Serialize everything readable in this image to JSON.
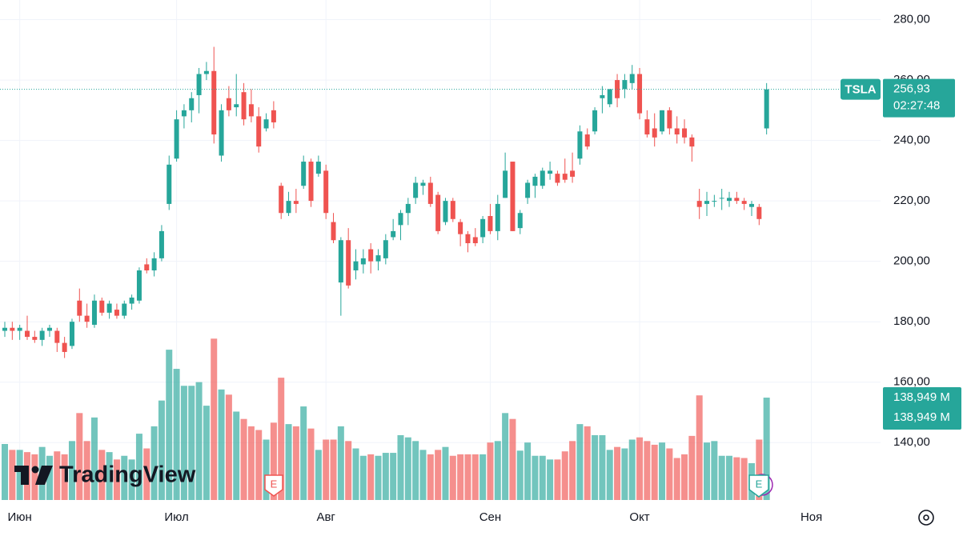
{
  "chart_data": {
    "type": "candlestick",
    "symbol": "TSLA",
    "categories": [
      null,
      null,
      "Июн",
      null,
      null,
      null,
      null,
      null,
      null,
      null,
      null,
      null,
      null,
      null,
      null,
      null,
      null,
      null,
      null,
      null,
      null,
      null,
      null,
      "Июл",
      null,
      null,
      null,
      null,
      null,
      null,
      null,
      null,
      null,
      null,
      null,
      null,
      null,
      null,
      null,
      null,
      null,
      null,
      null,
      "Авг",
      null,
      null,
      null,
      null,
      null,
      null,
      null,
      null,
      null,
      null,
      null,
      null,
      null,
      null,
      null,
      null,
      null,
      null,
      null,
      null,
      null,
      "Сен",
      null,
      null,
      null,
      null,
      null,
      null,
      null,
      null,
      null,
      null,
      null,
      null,
      null,
      null,
      null,
      null,
      null,
      null,
      null,
      "Окт",
      null,
      null,
      null,
      null,
      null,
      null,
      null,
      null,
      null,
      null,
      null,
      null,
      null,
      null,
      null,
      null,
      null,
      null,
      null,
      null,
      null,
      null,
      "Ноя"
    ],
    "open": [
      177,
      178,
      177,
      177,
      175,
      174,
      177,
      177,
      173,
      172,
      187,
      182,
      179,
      187,
      183,
      184,
      182,
      186,
      187,
      199,
      197,
      201,
      219,
      234,
      248,
      250,
      255,
      262,
      263,
      235,
      254,
      251,
      256,
      252,
      248,
      244,
      250,
      225,
      216,
      220,
      225,
      233,
      229,
      230,
      213,
      193,
      207,
      197,
      199,
      204,
      200,
      201,
      208,
      212,
      216,
      221,
      225,
      226,
      222,
      213,
      220,
      213,
      209,
      208,
      208,
      215,
      210,
      221,
      233,
      211,
      221,
      225,
      225,
      229,
      229,
      229,
      230,
      234,
      242,
      243,
      254,
      252,
      260,
      257,
      259,
      262,
      247,
      244,
      243,
      250,
      244,
      244,
      241,
      220,
      219,
      220,
      221,
      220,
      221,
      220,
      218,
      218,
      244,
      null,
      null,
      null,
      null,
      null,
      null
    ],
    "high": [
      180,
      180,
      179,
      182,
      177,
      178,
      179,
      178,
      175,
      181,
      191,
      186,
      189,
      188,
      187,
      186,
      187,
      189,
      198,
      201,
      203,
      212,
      235,
      250,
      252,
      256,
      264,
      266,
      271,
      252,
      258,
      262,
      259,
      257,
      251,
      249,
      253,
      226,
      223,
      224,
      235,
      234,
      235,
      232,
      216,
      208,
      211,
      204,
      204,
      206,
      204,
      209,
      214,
      217,
      221,
      228,
      227,
      228,
      223,
      221,
      221,
      214,
      210,
      211,
      215,
      219,
      222,
      236,
      233,
      217,
      227,
      229,
      231,
      233,
      230,
      234,
      236,
      245,
      244,
      251,
      258,
      257,
      262,
      262,
      265,
      264,
      250,
      249,
      250,
      251,
      248,
      247,
      242,
      224,
      223,
      222,
      224,
      223,
      223,
      221,
      220,
      219,
      259,
      null,
      null,
      null,
      null,
      null,
      null
    ],
    "low": [
      175,
      174,
      174,
      174,
      173,
      172,
      175,
      170,
      168,
      171,
      180,
      178,
      178,
      182,
      181,
      181,
      181,
      184,
      186,
      196,
      195,
      200,
      217,
      233,
      244,
      246,
      249,
      260,
      239,
      233,
      248,
      248,
      245,
      246,
      236,
      243,
      244,
      214,
      215,
      216,
      224,
      218,
      228,
      214,
      206,
      182,
      191,
      194,
      196,
      196,
      197,
      199,
      207,
      207,
      212,
      219,
      222,
      218,
      209,
      212,
      213,
      205,
      203,
      205,
      206,
      209,
      207,
      221,
      210,
      209,
      219,
      221,
      224,
      227,
      225,
      226,
      226,
      232,
      237,
      242,
      249,
      251,
      251,
      254,
      257,
      247,
      241,
      238,
      242,
      242,
      239,
      239,
      233,
      214,
      215,
      218,
      217,
      218,
      219,
      217,
      215,
      212,
      242,
      null,
      null,
      null,
      null,
      null,
      null
    ],
    "close": [
      178,
      177,
      178,
      175,
      174,
      177,
      178,
      173,
      170,
      180,
      182,
      180,
      187,
      183,
      186,
      182,
      186,
      188,
      197,
      197,
      201,
      210,
      232,
      247,
      250,
      254,
      262,
      263,
      242,
      250,
      250,
      252,
      247,
      248,
      238,
      247,
      246,
      216,
      220,
      219,
      233,
      220,
      233,
      216,
      207,
      207,
      192,
      200,
      201,
      200,
      202,
      207,
      210,
      216,
      219,
      226,
      226,
      219,
      210,
      220,
      214,
      209,
      206,
      206,
      214,
      210,
      219,
      230,
      210,
      216,
      226,
      228,
      230,
      230,
      226,
      227,
      228,
      243,
      238,
      250,
      255,
      257,
      254,
      260,
      262,
      249,
      242,
      241,
      250,
      244,
      242,
      241,
      238,
      218,
      220,
      220,
      221,
      221,
      220,
      219,
      219,
      214,
      256.93,
      null,
      null,
      null,
      null,
      null,
      null
    ],
    "volume": [
      76,
      68,
      68,
      65,
      62,
      72,
      60,
      66,
      62,
      80,
      118,
      80,
      112,
      68,
      65,
      55,
      60,
      55,
      90,
      70,
      100,
      135,
      204,
      178,
      155,
      155,
      160,
      128,
      219,
      150,
      143,
      120,
      110,
      100,
      95,
      82,
      105,
      166,
      103,
      100,
      127,
      97,
      68,
      82,
      82,
      100,
      80,
      70,
      60,
      62,
      60,
      64,
      64,
      88,
      85,
      80,
      68,
      62,
      68,
      72,
      60,
      62,
      62,
      62,
      62,
      78,
      80,
      118,
      110,
      67,
      78,
      60,
      60,
      55,
      55,
      66,
      80,
      103,
      100,
      88,
      88,
      68,
      72,
      70,
      82,
      85,
      80,
      75,
      78,
      70,
      57,
      62,
      87,
      142,
      78,
      80,
      60,
      60,
      58,
      57,
      50,
      82,
      138.949,
      null,
      null,
      null,
      null,
      null,
      null
    ],
    "up_color": "#26a69a",
    "down_color": "#ef5350",
    "last_price_label": "256,93",
    "countdown": "02:27:48",
    "last_volume_label": "138,949 M",
    "ylim": [
      121,
      286.5
    ],
    "yticks": [
      {
        "value": 140,
        "label": "140,00"
      },
      {
        "value": 160,
        "label": "160,00"
      },
      {
        "value": 180,
        "label": "180,00"
      },
      {
        "value": 200,
        "label": "200,00"
      },
      {
        "value": 220,
        "label": "220,00"
      },
      {
        "value": 240,
        "label": "240,00"
      },
      {
        "value": 260,
        "label": "260,00"
      },
      {
        "value": 280,
        "label": "280,00"
      }
    ],
    "grid": true,
    "earnings": [
      "E",
      "E"
    ],
    "logo": "TradingView"
  }
}
